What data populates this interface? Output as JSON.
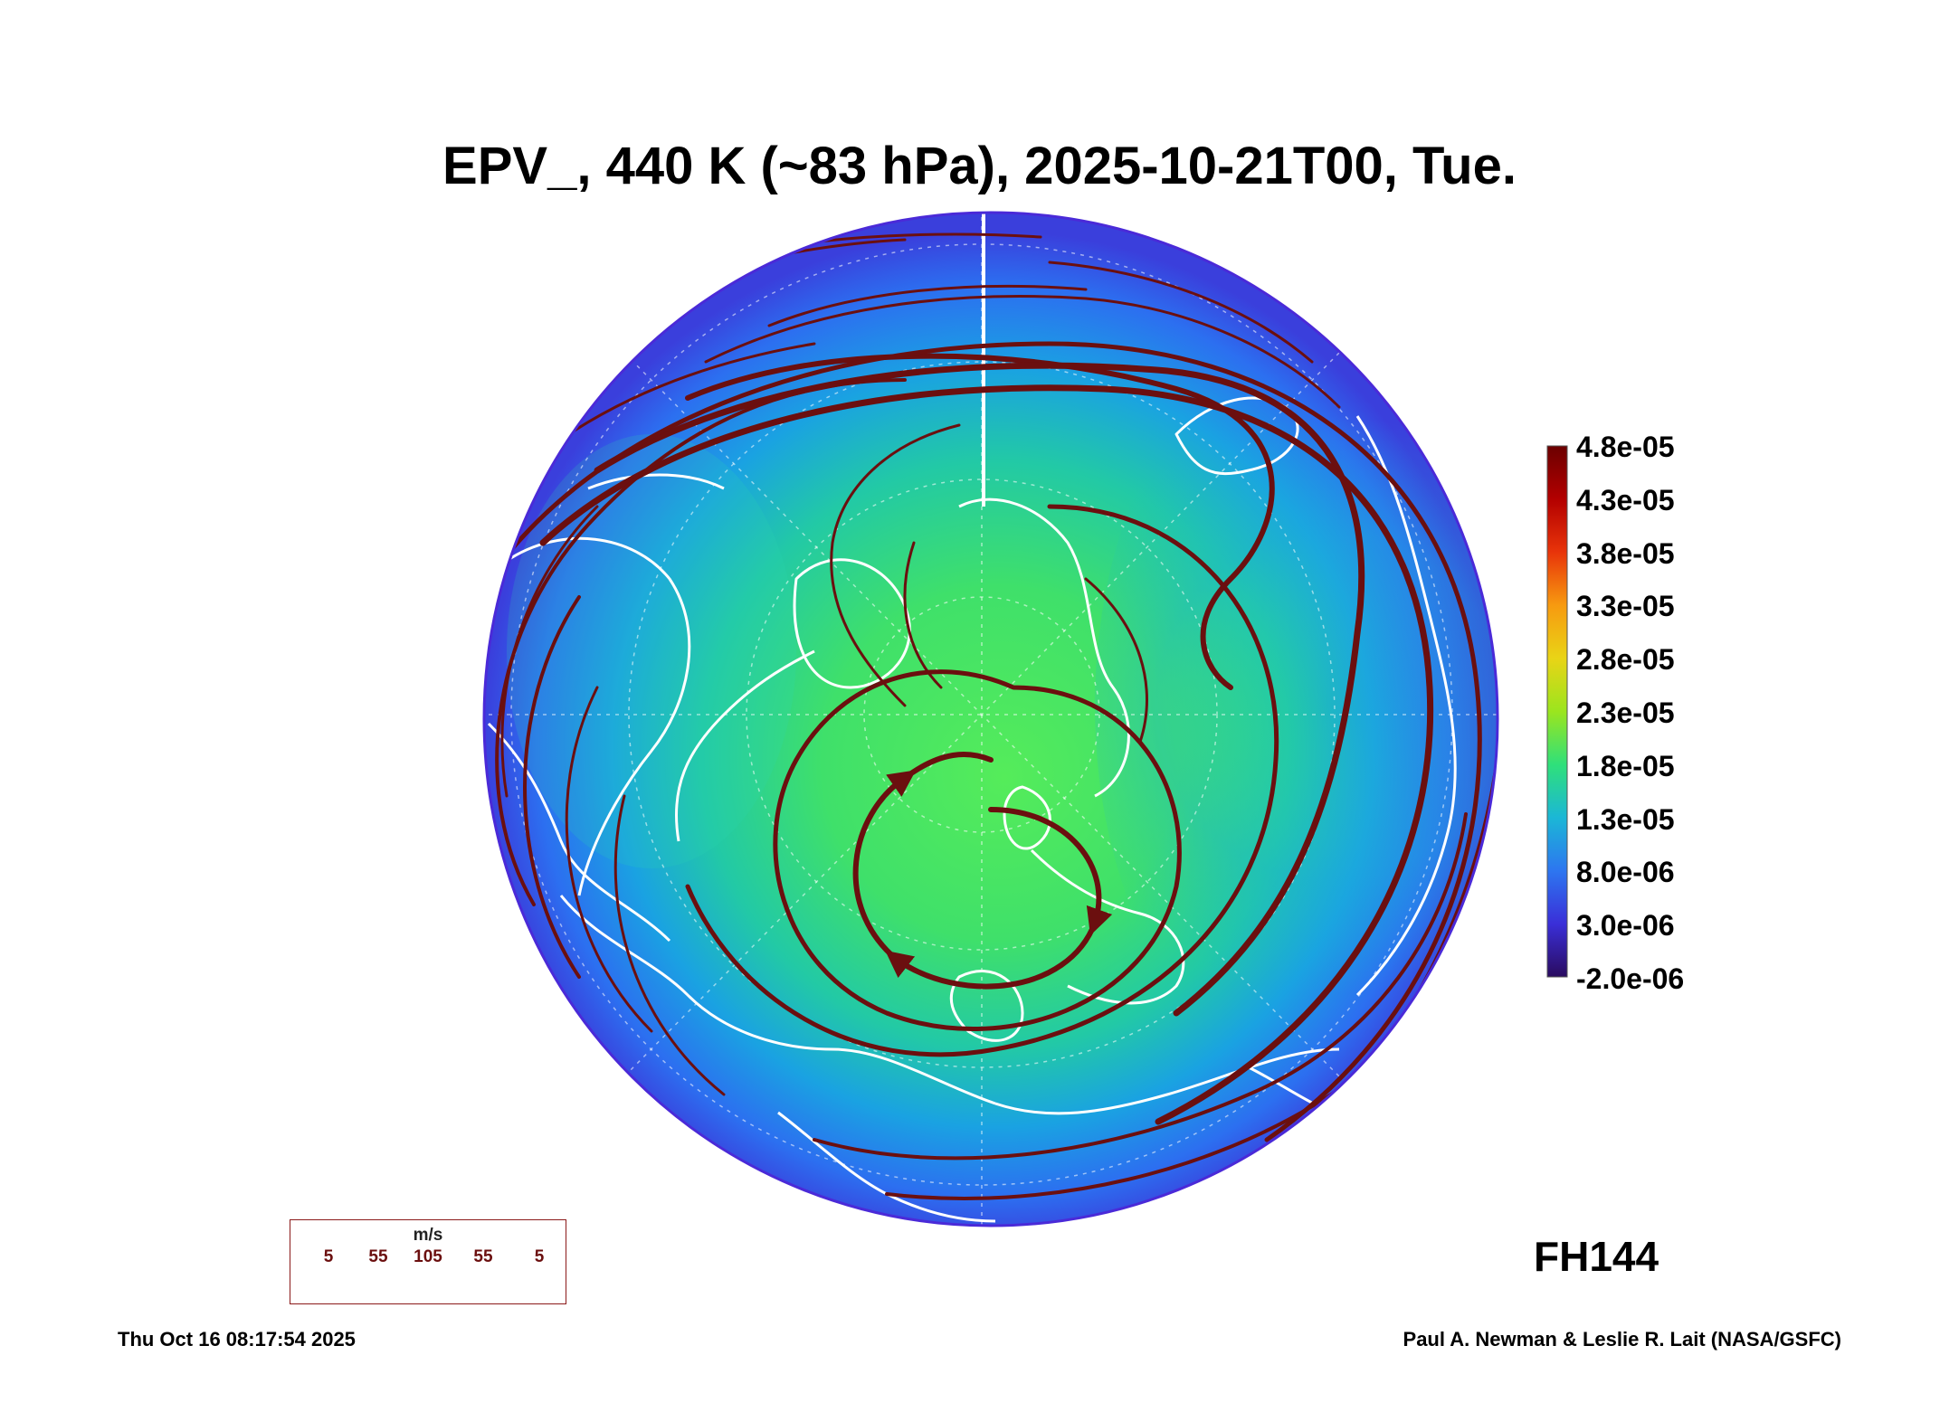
{
  "title": "EPV_, 440 K (~83 hPa), 2025-10-21T00, Tue.",
  "colorbar": {
    "labels": [
      "4.8e-05",
      "4.3e-05",
      "3.8e-05",
      "3.3e-05",
      "2.8e-05",
      "2.3e-05",
      "1.8e-05",
      "1.3e-05",
      "8.0e-06",
      "3.0e-06",
      "-2.0e-06"
    ],
    "colors": [
      "#6b0000",
      "#b30000",
      "#e8340a",
      "#f79a10",
      "#e9d416",
      "#9be51e",
      "#2fe07a",
      "#1bb7d6",
      "#2d76f0",
      "#3a2fd8",
      "#2a0b5f"
    ]
  },
  "forecast_hour": "FH144",
  "wind_legend": {
    "units": "m/s",
    "values": [
      "5",
      "55",
      "105",
      "55",
      "5"
    ],
    "color": "#6b0f0f"
  },
  "footer": {
    "timestamp": "Thu Oct 16 08:17:54 2025",
    "credit": "Paul A. Newman & Leslie R. Lait (NASA/GSFC)"
  },
  "colors": {
    "streamline": "#6b0f0f",
    "coastline": "#ffffff",
    "field_outer": "#3a5ae8",
    "field_mid": "#1fa9e0",
    "field_inner": "#3be06e"
  }
}
